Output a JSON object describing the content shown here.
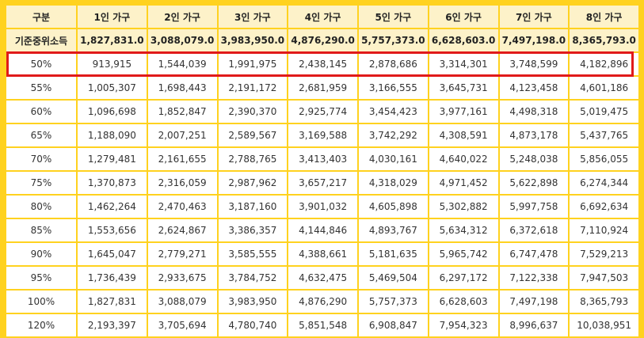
{
  "table": {
    "headers": [
      "구분",
      "1인 가구",
      "2인 가구",
      "3인 가구",
      "4인 가구",
      "5인 가구",
      "6인 가구",
      "7인 가구",
      "8인 가구"
    ],
    "base_row": {
      "label": "기준중위소득",
      "values": [
        "1,827,831.0",
        "3,088,079.0",
        "3,983,950.0",
        "4,876,290.0",
        "5,757,373.0",
        "6,628,603.0",
        "7,497,198.0",
        "8,365,793.0"
      ]
    },
    "rows": [
      {
        "label": "50%",
        "values": [
          "913,915",
          "1,544,039",
          "1,991,975",
          "2,438,145",
          "2,878,686",
          "3,314,301",
          "3,748,599",
          "4,182,896"
        ],
        "highlighted": true
      },
      {
        "label": "55%",
        "values": [
          "1,005,307",
          "1,698,443",
          "2,191,172",
          "2,681,959",
          "3,166,555",
          "3,645,731",
          "4,123,458",
          "4,601,186"
        ]
      },
      {
        "label": "60%",
        "values": [
          "1,096,698",
          "1,852,847",
          "2,390,370",
          "2,925,774",
          "3,454,423",
          "3,977,161",
          "4,498,318",
          "5,019,475"
        ]
      },
      {
        "label": "65%",
        "values": [
          "1,188,090",
          "2,007,251",
          "2,589,567",
          "3,169,588",
          "3,742,292",
          "4,308,591",
          "4,873,178",
          "5,437,765"
        ]
      },
      {
        "label": "70%",
        "values": [
          "1,279,481",
          "2,161,655",
          "2,788,765",
          "3,413,403",
          "4,030,161",
          "4,640,022",
          "5,248,038",
          "5,856,055"
        ]
      },
      {
        "label": "75%",
        "values": [
          "1,370,873",
          "2,316,059",
          "2,987,962",
          "3,657,217",
          "4,318,029",
          "4,971,452",
          "5,622,898",
          "6,274,344"
        ]
      },
      {
        "label": "80%",
        "values": [
          "1,462,264",
          "2,470,463",
          "3,187,160",
          "3,901,032",
          "4,605,898",
          "5,302,882",
          "5,997,758",
          "6,692,634"
        ]
      },
      {
        "label": "85%",
        "values": [
          "1,553,656",
          "2,624,867",
          "3,386,357",
          "4,144,846",
          "4,893,767",
          "5,634,312",
          "6,372,618",
          "7,110,924"
        ]
      },
      {
        "label": "90%",
        "values": [
          "1,645,047",
          "2,779,271",
          "3,585,555",
          "4,388,661",
          "5,181,635",
          "5,965,742",
          "6,747,478",
          "7,529,213"
        ]
      },
      {
        "label": "95%",
        "values": [
          "1,736,439",
          "2,933,675",
          "3,784,752",
          "4,632,475",
          "5,469,504",
          "6,297,172",
          "7,122,338",
          "7,947,503"
        ]
      },
      {
        "label": "100%",
        "values": [
          "1,827,831",
          "3,088,079",
          "3,983,950",
          "4,876,290",
          "5,757,373",
          "6,628,603",
          "7,497,198",
          "8,365,793"
        ]
      },
      {
        "label": "120%",
        "values": [
          "2,193,397",
          "3,705,694",
          "4,780,740",
          "5,851,548",
          "6,908,847",
          "7,954,323",
          "8,996,637",
          "10,038,951"
        ]
      }
    ]
  },
  "colors": {
    "background": "#ffd21f",
    "header_cell": "#fdf2c9",
    "body_cell": "#ffffff",
    "highlight_border": "#e01a1a"
  }
}
